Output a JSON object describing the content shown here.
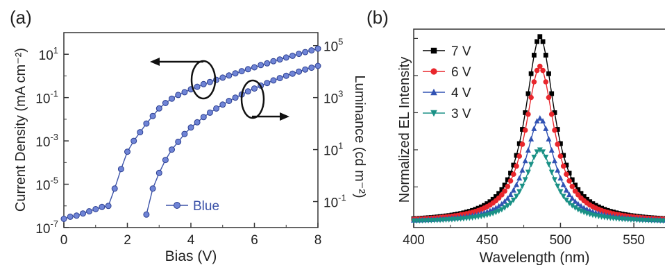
{
  "chart_data": [
    {
      "panel_label": "(a)",
      "type": "line",
      "xlabel": "Bias (V)",
      "ylabel": "Current Density (mA cm⁻²)",
      "y2label": "Luminance (cd m⁻²)",
      "xlim": [
        0,
        8
      ],
      "ylim_log10": [
        -7,
        2
      ],
      "y2lim_log10": [
        -2,
        5.5
      ],
      "y_scale": "log",
      "y2_scale": "log",
      "x_ticks": [
        "0",
        "2",
        "4",
        "6",
        "8"
      ],
      "y_ticks": [
        {
          "base": "10",
          "exp": "1",
          "log": 1
        },
        {
          "base": "10",
          "exp": "-1",
          "log": -1
        },
        {
          "base": "10",
          "exp": "-3",
          "log": -3
        },
        {
          "base": "10",
          "exp": "-5",
          "log": -5
        },
        {
          "base": "10",
          "exp": "-7",
          "log": -7
        }
      ],
      "y2_ticks": [
        {
          "base": "10",
          "exp": "5",
          "log": 5
        },
        {
          "base": "10",
          "exp": "3",
          "log": 3
        },
        {
          "base": "10",
          "exp": "1",
          "log": 1
        },
        {
          "base": "10",
          "exp": "-1",
          "log": -1
        }
      ],
      "legend": "Blue",
      "color": "#3b52a8",
      "series": [
        {
          "name": "Blue",
          "axis": "left",
          "x": [
            0,
            0.2,
            0.4,
            0.6,
            0.8,
            1.0,
            1.2,
            1.4,
            1.6,
            1.8,
            2.0,
            2.2,
            2.4,
            2.6,
            2.8,
            3.0,
            3.2,
            3.4,
            3.6,
            3.8,
            4.0,
            4.2,
            4.4,
            4.6,
            4.8,
            5.0,
            5.2,
            5.4,
            5.6,
            5.8,
            6.0,
            6.2,
            6.4,
            6.6,
            6.8,
            7.0,
            7.2,
            7.4,
            7.6,
            7.8,
            8.0
          ],
          "log10_y": [
            -6.6,
            -6.5,
            -6.45,
            -6.35,
            -6.25,
            -6.15,
            -6.05,
            -6.0,
            -5.2,
            -4.3,
            -3.5,
            -3.0,
            -2.6,
            -2.2,
            -1.85,
            -1.5,
            -1.25,
            -1.05,
            -0.88,
            -0.75,
            -0.62,
            -0.5,
            -0.38,
            -0.28,
            -0.18,
            -0.08,
            0.02,
            0.12,
            0.22,
            0.31,
            0.4,
            0.5,
            0.58,
            0.68,
            0.76,
            0.85,
            0.93,
            1.02,
            1.1,
            1.18,
            1.26
          ]
        },
        {
          "name": "Blue",
          "axis": "right",
          "x": [
            2.6,
            2.8,
            3.0,
            3.2,
            3.4,
            3.6,
            3.8,
            4.0,
            4.2,
            4.4,
            4.6,
            4.8,
            5.0,
            5.2,
            5.4,
            5.6,
            5.8,
            6.0,
            6.2,
            6.4,
            6.6,
            6.8,
            7.0,
            7.2,
            7.4,
            7.6,
            7.8,
            8.0
          ],
          "log10_y": [
            -1.5,
            -0.5,
            0.1,
            0.6,
            1.0,
            1.3,
            1.6,
            1.85,
            2.05,
            2.25,
            2.42,
            2.58,
            2.73,
            2.87,
            3.0,
            3.12,
            3.24,
            3.35,
            3.46,
            3.56,
            3.66,
            3.75,
            3.84,
            3.92,
            4.0,
            4.08,
            4.15,
            4.22
          ]
        }
      ]
    },
    {
      "panel_label": "(b)",
      "type": "line",
      "xlabel": "Wavelength (nm)",
      "ylabel": "Normalized EL Intensity",
      "xlim": [
        400,
        575
      ],
      "ylim": [
        0,
        1.05
      ],
      "x_ticks": [
        "400",
        "450",
        "500",
        "550"
      ],
      "peak_nm": 486,
      "series": [
        {
          "name": "7 V",
          "amplitude": 1.0,
          "color": "#000000",
          "marker": "square"
        },
        {
          "name": "6 V",
          "amplitude": 0.84,
          "color": "#e8262c",
          "marker": "circle"
        },
        {
          "name": "4 V",
          "amplitude": 0.56,
          "color": "#3152b3",
          "marker": "triangle-up"
        },
        {
          "name": "3 V",
          "amplitude": 0.39,
          "color": "#1a9186",
          "marker": "triangle-down"
        }
      ]
    }
  ]
}
